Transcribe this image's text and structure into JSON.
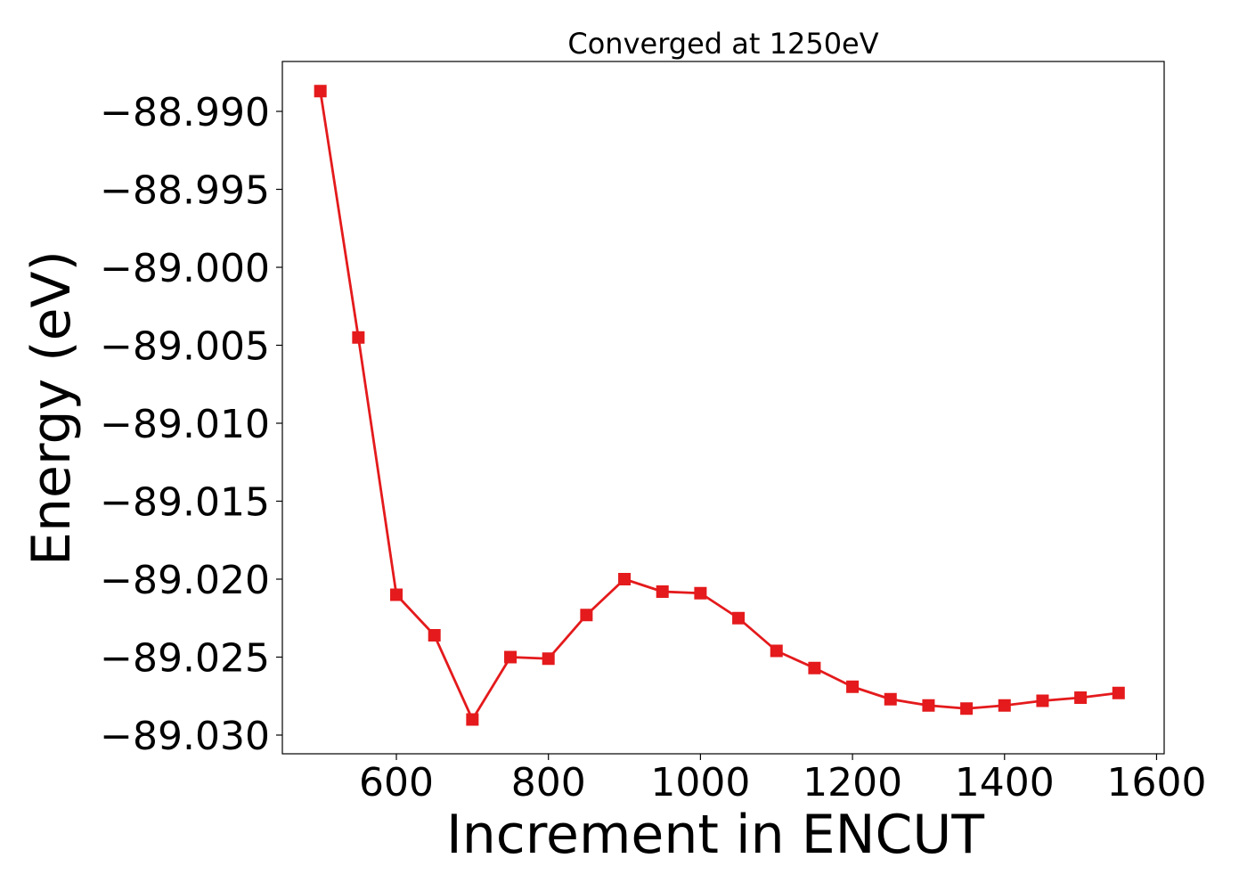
{
  "chart_data": {
    "type": "line",
    "title": "Converged at 1250eV",
    "xlabel": "Increment in ENCUT",
    "ylabel": "Energy (eV)",
    "xlim": [
      450,
      1610
    ],
    "ylim": [
      -89.0312,
      -88.9868
    ],
    "xticks": [
      600,
      800,
      1000,
      1200,
      1400,
      1600
    ],
    "xtick_labels": [
      "600",
      "800",
      "1000",
      "1200",
      "1400",
      "1600"
    ],
    "yticks": [
      -88.99,
      -88.995,
      -89.0,
      -89.005,
      -89.01,
      -89.015,
      -89.02,
      -89.025,
      -89.03
    ],
    "ytick_labels": [
      "−88.990",
      "−88.995",
      "−89.000",
      "−89.005",
      "−89.010",
      "−89.015",
      "−89.020",
      "−89.025",
      "−89.030"
    ],
    "grid": false,
    "series": [
      {
        "color": "#e41a1c",
        "marker": "square",
        "x": [
          500,
          550,
          600,
          650,
          700,
          750,
          800,
          850,
          900,
          950,
          1000,
          1050,
          1100,
          1150,
          1200,
          1250,
          1300,
          1350,
          1400,
          1450,
          1500,
          1550
        ],
        "y": [
          -88.9887,
          -89.0045,
          -89.021,
          -89.0236,
          -89.029,
          -89.025,
          -89.0251,
          -89.0223,
          -89.02,
          -89.0208,
          -89.0209,
          -89.0225,
          -89.0246,
          -89.0257,
          -89.0269,
          -89.0277,
          -89.0281,
          -89.0283,
          -89.0281,
          -89.0278,
          -89.0276,
          -89.0273
        ]
      }
    ]
  }
}
